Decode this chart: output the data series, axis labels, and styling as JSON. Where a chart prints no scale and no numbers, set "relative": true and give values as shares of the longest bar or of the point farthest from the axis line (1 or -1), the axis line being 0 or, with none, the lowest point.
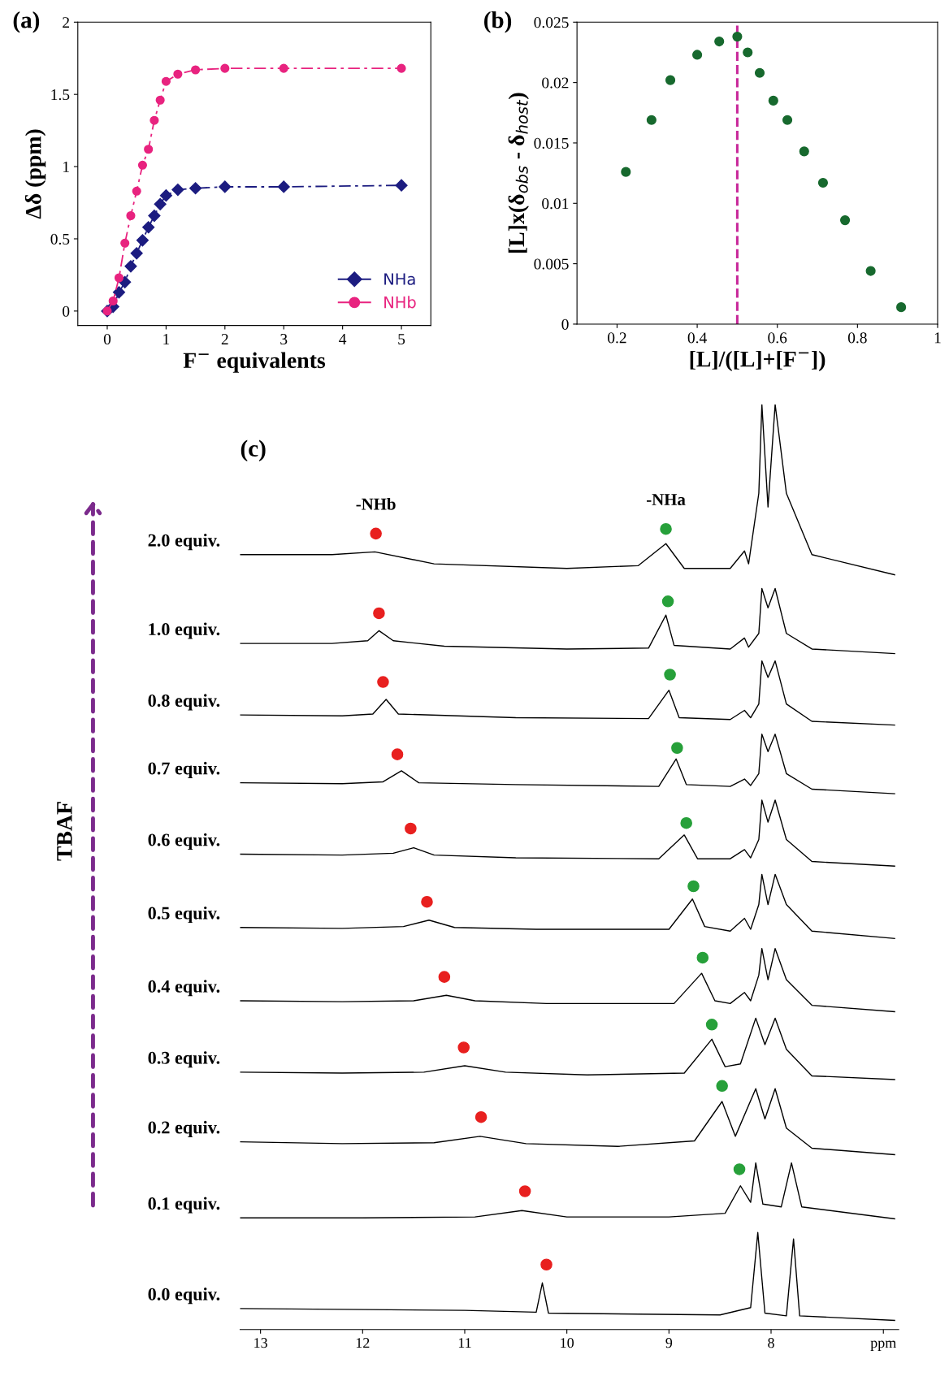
{
  "chart_data": [
    {
      "type": "line",
      "title": "(a)",
      "xlabel": "F$^{−}$ equivalents",
      "ylabel": "Δδ (ppm)",
      "xlim": [
        -0.5,
        5.5
      ],
      "ylim": [
        -0.1,
        2
      ],
      "xticks": [
        0,
        1,
        2,
        3,
        4,
        5
      ],
      "yticks": [
        0,
        0.5,
        1,
        1.5,
        2
      ],
      "grid": false,
      "legend": "bottom right",
      "line_style": "dashed",
      "x": [
        0,
        0.1,
        0.2,
        0.3,
        0.4,
        0.5,
        0.6,
        0.7,
        0.8,
        0.9,
        1.0,
        1.2,
        1.5,
        2,
        3,
        5
      ],
      "series": [
        {
          "name": "NHa",
          "color": "#1c1c80",
          "marker": "diamond",
          "values": [
            0,
            0.03,
            0.13,
            0.2,
            0.31,
            0.4,
            0.49,
            0.58,
            0.66,
            0.74,
            0.8,
            0.84,
            0.85,
            0.86,
            0.86,
            0.87
          ]
        },
        {
          "name": "NHb",
          "color": "#e8237f",
          "marker": "circle",
          "values": [
            0,
            0.07,
            0.23,
            0.47,
            0.66,
            0.83,
            1.01,
            1.12,
            1.32,
            1.46,
            1.59,
            1.64,
            1.67,
            1.68,
            1.68,
            1.68
          ]
        }
      ]
    },
    {
      "type": "scatter",
      "title": "(b)",
      "xlabel": "[L]/([L]+[F$^{−}$])",
      "ylabel": "[L]x(δ$_{obs}$ - δ$_{host}$)",
      "xlim": [
        0.1,
        1
      ],
      "ylim": [
        0,
        0.025
      ],
      "xticks": [
        0.2,
        0.4,
        0.6,
        0.8,
        1
      ],
      "yticks": [
        0,
        0.005,
        0.01,
        0.015,
        0.02,
        0.025
      ],
      "grid": false,
      "marker": "circle",
      "ref_lines": [
        {
          "axis": "x",
          "value": 0.5,
          "color": "#c8289a",
          "line_style": "dashed"
        }
      ],
      "series": [
        {
          "color": "#17692e",
          "x": [
            0.222,
            0.286,
            0.333,
            0.4,
            0.455,
            0.5,
            0.526,
            0.556,
            0.59,
            0.625,
            0.667,
            0.714,
            0.769,
            0.833,
            0.909
          ],
          "values": [
            0.0126,
            0.0169,
            0.0202,
            0.0223,
            0.0234,
            0.0238,
            0.0225,
            0.0208,
            0.0185,
            0.0169,
            0.0143,
            0.0117,
            0.0086,
            0.0044,
            0.0014
          ]
        }
      ]
    },
    {
      "type": "line",
      "title": "(c)",
      "relative": true,
      "legend": false,
      "xlim": [
        13.2,
        6.75
      ],
      "xticks": [
        13,
        12,
        11,
        10,
        9,
        8,
        {
          "value": 6.9,
          "label": "ppm"
        }
      ],
      "annotations": [
        {
          "text": "-NHb",
          "x": 11.87,
          "y": 0.859
        },
        {
          "text": "-NHa",
          "x": 9.03,
          "y": 0.864
        },
        "TBAF"
      ],
      "series": [
        {
          "name": "2.0 equiv.",
          "color": "#000000",
          "x": [
            13.2,
            12.3,
            11.88,
            11.3,
            10.0,
            9.3,
            9.03,
            8.85,
            8.4,
            8.26,
            8.22,
            8.12,
            8.09,
            8.03,
            7.96,
            7.85,
            7.6,
            6.79
          ],
          "values": [
            0.836,
            0.836,
            0.839,
            0.826,
            0.821,
            0.824,
            0.848,
            0.821,
            0.821,
            0.84,
            0.826,
            0.903,
            1.0,
            0.888,
            1.0,
            0.903,
            0.836,
            0.814
          ]
        },
        {
          "name": "1.0 equiv.",
          "color": "#000000",
          "x": [
            13.2,
            12.3,
            11.95,
            11.84,
            11.7,
            11.2,
            10.0,
            9.2,
            9.03,
            8.95,
            8.4,
            8.26,
            8.22,
            8.12,
            8.09,
            8.03,
            7.96,
            7.85,
            7.6,
            6.79
          ],
          "values": [
            0.739,
            0.739,
            0.742,
            0.753,
            0.742,
            0.736,
            0.733,
            0.734,
            0.77,
            0.737,
            0.733,
            0.745,
            0.735,
            0.75,
            0.799,
            0.778,
            0.799,
            0.75,
            0.733,
            0.728
          ]
        },
        {
          "name": "0.8 equiv.",
          "color": "#000000",
          "x": [
            13.2,
            12.2,
            11.9,
            11.77,
            11.65,
            10.5,
            9.2,
            9.0,
            8.9,
            8.4,
            8.26,
            8.2,
            8.12,
            8.09,
            8.03,
            7.96,
            7.85,
            7.6,
            6.79
          ],
          "values": [
            0.661,
            0.66,
            0.662,
            0.678,
            0.662,
            0.658,
            0.657,
            0.688,
            0.658,
            0.656,
            0.666,
            0.658,
            0.673,
            0.72,
            0.702,
            0.72,
            0.673,
            0.654,
            0.65
          ]
        },
        {
          "name": "0.7 equiv.",
          "color": "#000000",
          "x": [
            13.2,
            12.2,
            11.8,
            11.62,
            11.45,
            10.5,
            9.1,
            8.93,
            8.83,
            8.4,
            8.26,
            8.2,
            8.12,
            8.09,
            8.03,
            7.96,
            7.85,
            7.6,
            6.79
          ],
          "values": [
            0.587,
            0.586,
            0.588,
            0.6,
            0.587,
            0.585,
            0.583,
            0.613,
            0.585,
            0.583,
            0.591,
            0.584,
            0.597,
            0.64,
            0.621,
            0.64,
            0.597,
            0.58,
            0.575
          ]
        },
        {
          "name": "0.6 equiv.",
          "color": "#000000",
          "x": [
            13.2,
            12.2,
            11.7,
            11.5,
            11.3,
            10.5,
            9.1,
            8.85,
            8.72,
            8.4,
            8.26,
            8.2,
            8.12,
            8.09,
            8.03,
            7.96,
            7.85,
            7.6,
            6.79
          ],
          "values": [
            0.509,
            0.508,
            0.51,
            0.516,
            0.508,
            0.505,
            0.504,
            0.53,
            0.504,
            0.504,
            0.514,
            0.505,
            0.525,
            0.568,
            0.544,
            0.568,
            0.525,
            0.501,
            0.496
          ]
        },
        {
          "name": "0.5 equiv.",
          "color": "#000000",
          "x": [
            13.2,
            12.2,
            11.6,
            11.35,
            11.1,
            10.3,
            9.0,
            8.77,
            8.65,
            8.4,
            8.26,
            8.2,
            8.12,
            8.09,
            8.03,
            7.96,
            7.85,
            7.6,
            6.79
          ],
          "values": [
            0.429,
            0.428,
            0.43,
            0.437,
            0.429,
            0.427,
            0.427,
            0.46,
            0.43,
            0.425,
            0.439,
            0.427,
            0.454,
            0.487,
            0.454,
            0.487,
            0.454,
            0.425,
            0.417
          ]
        },
        {
          "name": "0.4 equiv.",
          "color": "#000000",
          "x": [
            13.2,
            12.2,
            11.5,
            11.18,
            10.9,
            10.2,
            8.95,
            8.68,
            8.55,
            8.4,
            8.26,
            8.2,
            8.12,
            8.09,
            8.03,
            7.96,
            7.85,
            7.6,
            6.79
          ],
          "values": [
            0.349,
            0.348,
            0.349,
            0.355,
            0.349,
            0.346,
            0.346,
            0.379,
            0.349,
            0.346,
            0.358,
            0.349,
            0.377,
            0.406,
            0.372,
            0.406,
            0.372,
            0.344,
            0.337
          ]
        },
        {
          "name": "0.3 equiv.",
          "color": "#000000",
          "x": [
            13.2,
            12.2,
            11.4,
            11.0,
            10.6,
            9.8,
            8.85,
            8.58,
            8.45,
            8.3,
            8.15,
            8.06,
            7.96,
            7.85,
            7.6,
            6.79
          ],
          "values": [
            0.271,
            0.27,
            0.271,
            0.278,
            0.271,
            0.268,
            0.27,
            0.307,
            0.277,
            0.28,
            0.33,
            0.301,
            0.33,
            0.296,
            0.267,
            0.263
          ]
        },
        {
          "name": "0.2 equiv.",
          "color": "#000000",
          "x": [
            13.2,
            12.2,
            11.3,
            10.85,
            10.4,
            9.5,
            8.75,
            8.48,
            8.35,
            8.15,
            8.06,
            7.96,
            7.85,
            7.6,
            6.79
          ],
          "values": [
            0.195,
            0.193,
            0.194,
            0.201,
            0.193,
            0.19,
            0.196,
            0.239,
            0.201,
            0.253,
            0.22,
            0.253,
            0.21,
            0.188,
            0.181
          ]
        },
        {
          "name": "0.1 equiv.",
          "color": "#000000",
          "x": [
            13.2,
            12.0,
            10.9,
            10.44,
            10.0,
            9.0,
            8.45,
            8.3,
            8.2,
            8.15,
            8.08,
            7.9,
            7.8,
            7.7,
            6.79
          ],
          "values": [
            0.112,
            0.112,
            0.113,
            0.12,
            0.113,
            0.113,
            0.117,
            0.147,
            0.129,
            0.172,
            0.127,
            0.124,
            0.172,
            0.124,
            0.111
          ]
        },
        {
          "name": "0.0 equiv.",
          "color": "#000000",
          "x": [
            13.2,
            11.0,
            10.3,
            10.24,
            10.18,
            8.5,
            8.2,
            8.13,
            8.06,
            7.85,
            7.78,
            7.72,
            6.79
          ],
          "values": [
            0.013,
            0.011,
            0.009,
            0.041,
            0.008,
            0.006,
            0.014,
            0.096,
            0.008,
            0.005,
            0.089,
            0.005,
            0.0
          ]
        },
        {
          "type": "scatter",
          "marker": "circle",
          "color": "#e8201f",
          "x": [
            11.87,
            11.84,
            11.8,
            11.66,
            11.53,
            11.37,
            11.2,
            11.01,
            10.84,
            10.41,
            10.2
          ],
          "values": [
            0.859,
            0.772,
            0.697,
            0.618,
            0.537,
            0.457,
            0.375,
            0.298,
            0.222,
            0.141,
            0.061
          ]
        },
        {
          "type": "scatter",
          "marker": "circle",
          "color": "#27a03a",
          "x": [
            9.03,
            9.01,
            8.99,
            8.92,
            8.83,
            8.76,
            8.67,
            8.58,
            8.48,
            8.31
          ],
          "values": [
            0.864,
            0.785,
            0.705,
            0.625,
            0.543,
            0.474,
            0.396,
            0.323,
            0.256,
            0.165
          ]
        }
      ]
    }
  ]
}
